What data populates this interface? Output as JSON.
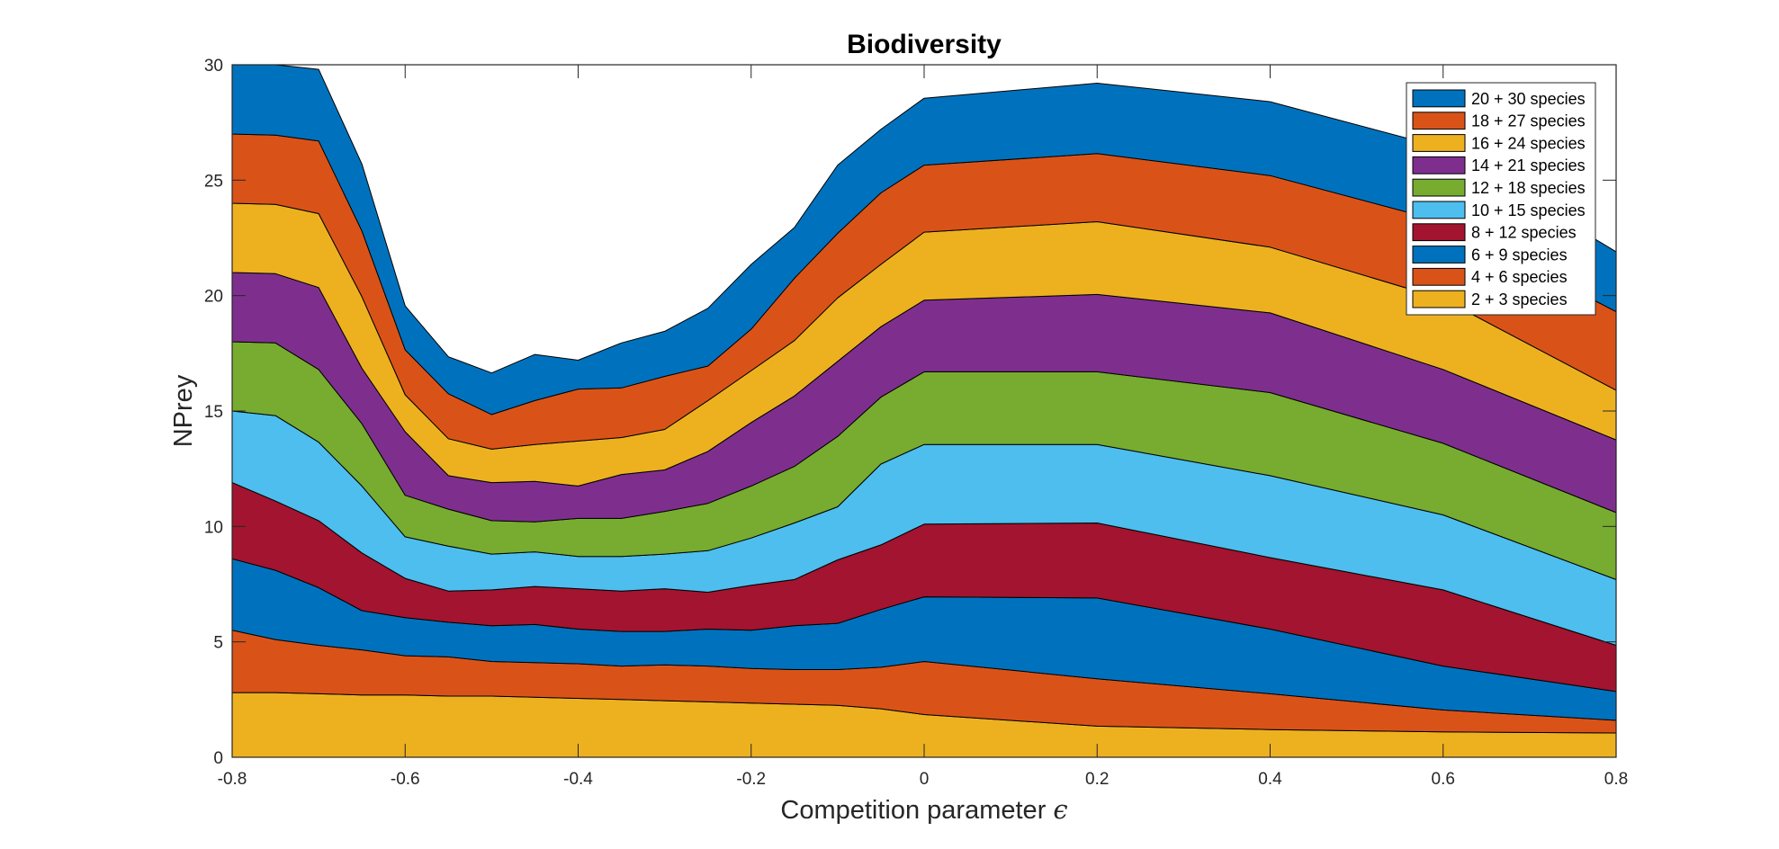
{
  "chart_data": {
    "type": "area",
    "stacked": true,
    "title": "Biodiversity",
    "xlabel": "Competition parameter",
    "xlabel_symbol": "ϵ",
    "ylabel": "NPrey",
    "xlim": [
      -0.8,
      0.8
    ],
    "ylim": [
      0,
      30
    ],
    "xticks": [
      "-0.8",
      "-0.6",
      "-0.4",
      "-0.2",
      "0",
      "0.2",
      "0.4",
      "0.6",
      "0.8"
    ],
    "yticks": [
      "0",
      "5",
      "10",
      "15",
      "20",
      "25",
      "30"
    ],
    "grid": false,
    "legend_position": "top-right",
    "x": [
      -0.8,
      -0.75,
      -0.7,
      -0.65,
      -0.6,
      -0.55,
      -0.5,
      -0.45,
      -0.4,
      -0.35,
      -0.3,
      -0.25,
      -0.2,
      -0.15,
      -0.1,
      -0.05,
      0,
      0.2,
      0.4,
      0.6,
      0.8
    ],
    "series": [
      {
        "name": "2 + 3 species",
        "color": "#EDB120",
        "values": [
          2.8,
          2.8,
          2.75,
          2.7,
          2.7,
          2.65,
          2.65,
          2.6,
          2.55,
          2.5,
          2.45,
          2.4,
          2.35,
          2.3,
          2.25,
          2.1,
          1.85,
          1.35,
          1.2,
          1.1,
          1.05
        ]
      },
      {
        "name": "4 + 6 species",
        "color": "#D95319",
        "values": [
          2.7,
          2.3,
          2.1,
          1.95,
          1.7,
          1.7,
          1.5,
          1.5,
          1.5,
          1.45,
          1.55,
          1.55,
          1.5,
          1.5,
          1.55,
          1.8,
          2.3,
          2.05,
          1.55,
          0.95,
          0.55
        ]
      },
      {
        "name": "6 + 9 species",
        "color": "#0072BD",
        "values": [
          3.1,
          3.0,
          2.5,
          1.7,
          1.65,
          1.5,
          1.55,
          1.65,
          1.5,
          1.5,
          1.45,
          1.6,
          1.65,
          1.9,
          2.0,
          2.5,
          2.8,
          3.5,
          2.8,
          1.9,
          1.25
        ]
      },
      {
        "name": "8 + 12 species",
        "color": "#A2142F",
        "values": [
          3.3,
          3.0,
          2.9,
          2.5,
          1.7,
          1.35,
          1.55,
          1.65,
          1.75,
          1.75,
          1.85,
          1.6,
          1.95,
          2.0,
          2.75,
          2.8,
          3.15,
          3.25,
          3.1,
          3.3,
          2.0
        ]
      },
      {
        "name": "10 + 15 species",
        "color": "#4DBEEE",
        "values": [
          3.1,
          3.7,
          3.4,
          2.9,
          1.8,
          1.95,
          1.55,
          1.5,
          1.4,
          1.5,
          1.5,
          1.8,
          2.05,
          2.45,
          2.3,
          3.5,
          3.45,
          3.4,
          3.55,
          3.25,
          2.85
        ]
      },
      {
        "name": "12 + 18 species",
        "color": "#77AC30",
        "values": [
          3.0,
          3.15,
          3.15,
          2.7,
          1.8,
          1.6,
          1.45,
          1.3,
          1.65,
          1.65,
          1.85,
          2.05,
          2.25,
          2.45,
          3.05,
          2.9,
          3.15,
          3.15,
          3.6,
          3.1,
          2.9
        ]
      },
      {
        "name": "14 + 21 species",
        "color": "#7E2F8E",
        "values": [
          3.0,
          3.0,
          3.55,
          2.4,
          2.75,
          1.45,
          1.65,
          1.75,
          1.4,
          1.9,
          1.8,
          2.25,
          2.75,
          3.05,
          3.25,
          3.05,
          3.1,
          3.35,
          3.45,
          3.2,
          3.15
        ]
      },
      {
        "name": "16 + 24 species",
        "color": "#EDB120",
        "values": [
          3.0,
          3.0,
          3.2,
          3.1,
          1.6,
          1.6,
          1.45,
          1.6,
          1.95,
          1.6,
          1.75,
          2.2,
          2.25,
          2.4,
          2.75,
          2.7,
          2.95,
          3.15,
          2.85,
          3.05,
          2.15
        ]
      },
      {
        "name": "18 + 27 species",
        "color": "#D95319",
        "values": [
          3.0,
          3.0,
          3.15,
          2.85,
          1.95,
          1.95,
          1.5,
          1.9,
          2.25,
          2.15,
          2.3,
          1.5,
          1.8,
          2.7,
          2.8,
          3.1,
          2.9,
          2.95,
          3.1,
          3.35,
          3.4
        ]
      },
      {
        "name": "20 + 30 species",
        "color": "#0072BD",
        "values": [
          3.0,
          3.05,
          3.1,
          2.9,
          1.9,
          1.6,
          1.8,
          2.0,
          1.25,
          1.95,
          1.95,
          2.5,
          2.8,
          2.2,
          2.95,
          2.75,
          2.9,
          3.05,
          3.2,
          3.2,
          2.6
        ]
      }
    ]
  }
}
